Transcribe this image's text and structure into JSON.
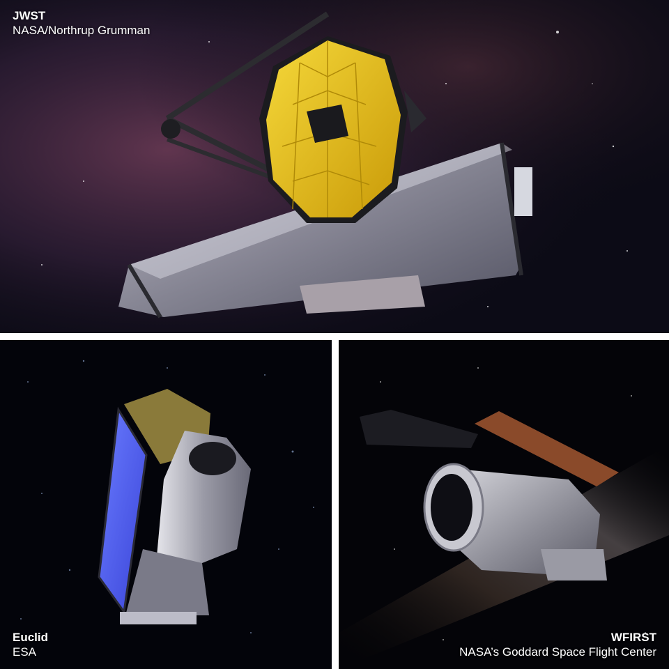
{
  "panels": {
    "jwst": {
      "title": "JWST",
      "credit": "NASA/Northrup Grumman"
    },
    "euclid": {
      "title": "Euclid",
      "credit": "ESA"
    },
    "wfirst": {
      "title": "WFIRST",
      "credit": "NASA’s Goddard Space Flight Center"
    }
  },
  "colors": {
    "divider": "#ffffff",
    "space": "#05060d",
    "mirror_gold": "#e8c21a",
    "nebula": "#4a2a3e",
    "solar_panel_blue": "#4a5ee8",
    "sunshield_copper": "#8a4a2a"
  }
}
